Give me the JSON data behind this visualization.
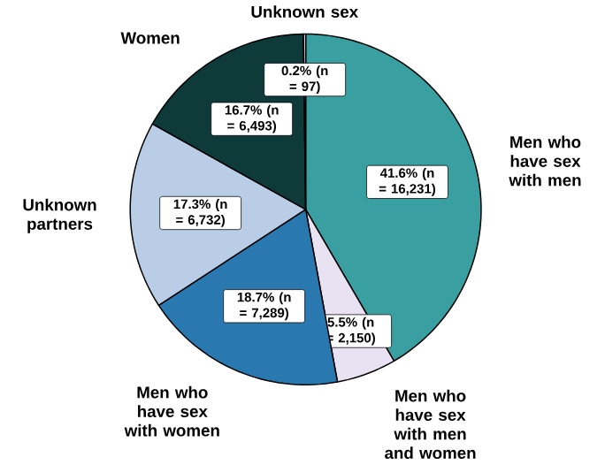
{
  "chart_data": {
    "type": "pie",
    "categories": [
      "Men who have sex with men",
      "Men who have sex with men and women",
      "Men who have sex with women",
      "Unknown partners",
      "Women",
      "Unknown sex"
    ],
    "values": [
      41.6,
      5.5,
      18.7,
      17.3,
      16.7,
      0.2
    ],
    "colors": [
      "#3a9fa1",
      "#e8e2f2",
      "#2a78b0",
      "#b9cde6",
      "#0e3a3a",
      "#ffffff"
    ],
    "value_labels": [
      "41.6% (n = 16,231)",
      "5.5% (n = 2,150)",
      "18.7% (n = 7,289)",
      "17.3% (n = 6,732)",
      "16.7% (n = 6,493)",
      "0.2% (n = 97)"
    ]
  }
}
